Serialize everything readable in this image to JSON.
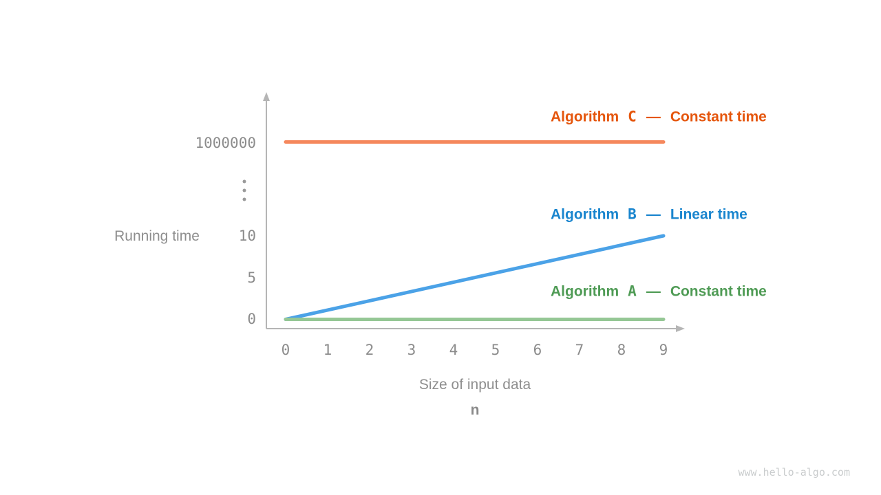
{
  "page": {
    "watermark": "www.hello-algo.com"
  },
  "chart_data": {
    "type": "line",
    "xlabel": "Size of input data",
    "xlabel_symbol": "n",
    "ylabel": "Running time",
    "x_ticks": [
      "0",
      "1",
      "2",
      "3",
      "4",
      "5",
      "6",
      "7",
      "8",
      "9"
    ],
    "y_ticks": [
      "0",
      "5",
      "10",
      "⋮",
      "1000000"
    ],
    "x_range": [
      0,
      9
    ],
    "grid": false,
    "legend_position": "right-of-lines",
    "legend_separator": "—",
    "axis_color": "#b5b5b5",
    "tick_color": "#8c8c8c",
    "series": [
      {
        "name": "Algorithm C",
        "legend_word": "Algorithm",
        "legend_letter": "C",
        "description": "Constant time",
        "line_color": "#f5875c",
        "label_color": "#e5560d",
        "x": [
          0,
          9
        ],
        "y": [
          1000000,
          1000000
        ]
      },
      {
        "name": "Algorithm B",
        "legend_word": "Algorithm",
        "legend_letter": "B",
        "description": "Linear time",
        "line_color": "#4ba2e7",
        "label_color": "#1985ce",
        "x": [
          0,
          9
        ],
        "y": [
          0,
          10
        ]
      },
      {
        "name": "Algorithm A",
        "legend_word": "Algorithm",
        "legend_letter": "A",
        "description": "Constant time",
        "line_color": "#95c795",
        "label_color": "#4f9b55",
        "x": [
          0,
          9
        ],
        "y": [
          0,
          0
        ]
      }
    ]
  }
}
